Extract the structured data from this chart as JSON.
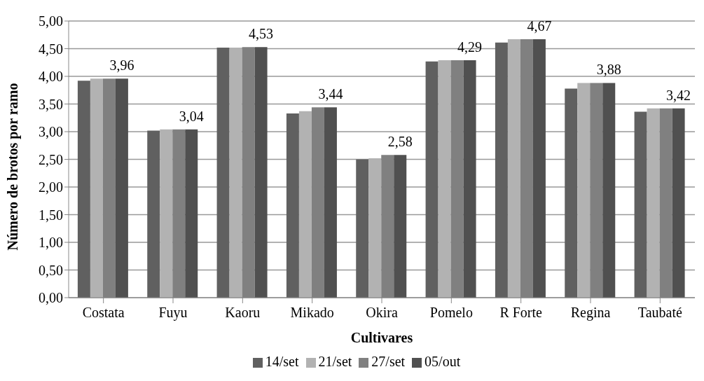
{
  "chart_data": {
    "type": "bar",
    "xlabel": "Cultivares",
    "ylabel": "Número de brotos por ramo",
    "categories": [
      "Costata",
      "Fuyu",
      "Kaoru",
      "Mikado",
      "Okira",
      "Pomelo",
      "R Forte",
      "Regina",
      "Taubaté"
    ],
    "series": [
      {
        "name": "14/set",
        "color": "#606060",
        "values": [
          3.92,
          3.02,
          4.52,
          3.33,
          2.5,
          4.27,
          4.61,
          3.78,
          3.36
        ]
      },
      {
        "name": "21/set",
        "color": "#b2b2b2",
        "values": [
          3.96,
          3.04,
          4.52,
          3.37,
          2.52,
          4.29,
          4.67,
          3.88,
          3.42
        ]
      },
      {
        "name": "27/set",
        "color": "#808080",
        "values": [
          3.96,
          3.04,
          4.53,
          3.44,
          2.58,
          4.29,
          4.67,
          3.88,
          3.42
        ]
      },
      {
        "name": "05/out",
        "color": "#505050",
        "values": [
          3.96,
          3.04,
          4.53,
          3.44,
          2.58,
          4.29,
          4.67,
          3.88,
          3.42
        ],
        "value_labels": [
          "3,96",
          "3,04",
          "4,53",
          "3,44",
          "2,58",
          "4,29",
          "4,67",
          "3,88",
          "3,42"
        ]
      }
    ],
    "ylim": [
      0,
      5
    ],
    "yticks": [
      {
        "value": 0,
        "label": "0,00"
      },
      {
        "value": 0.5,
        "label": "0,50"
      },
      {
        "value": 1,
        "label": "1,00"
      },
      {
        "value": 1.5,
        "label": "1,50"
      },
      {
        "value": 2,
        "label": "2,00"
      },
      {
        "value": 2.5,
        "label": "2,50"
      },
      {
        "value": 3,
        "label": "3,00"
      },
      {
        "value": 3.5,
        "label": "3,50"
      },
      {
        "value": 4,
        "label": "4,00"
      },
      {
        "value": 4.5,
        "label": "4,50"
      },
      {
        "value": 5,
        "label": "5,00"
      }
    ],
    "grid": "y",
    "legend": "bottom"
  }
}
